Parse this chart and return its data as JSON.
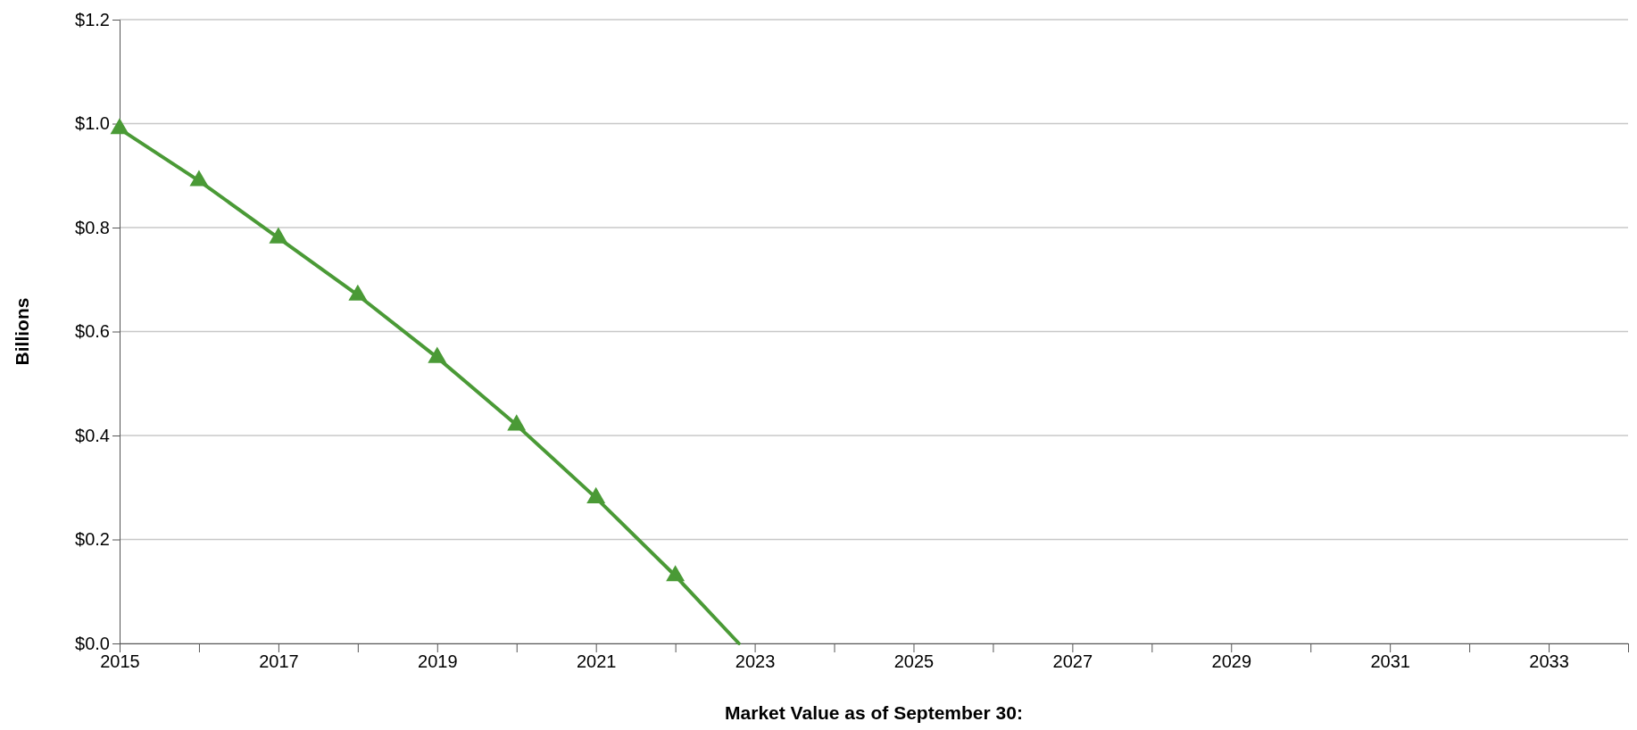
{
  "chart_data": {
    "type": "line",
    "xlabel": "Market Value as of September 30:",
    "ylabel": "Billions",
    "xlim": [
      2015,
      2034
    ],
    "xticks": [
      2015,
      {
        "value": 2016,
        "label": null
      },
      2017,
      {
        "value": 2018,
        "label": null
      },
      2019,
      {
        "value": 2020,
        "label": null
      },
      2021,
      {
        "value": 2022,
        "label": null
      },
      2023,
      {
        "value": 2024,
        "label": null
      },
      2025,
      {
        "value": 2026,
        "label": null
      },
      2027,
      {
        "value": 2028,
        "label": null
      },
      2029,
      {
        "value": 2030,
        "label": null
      },
      2031,
      {
        "value": 2032,
        "label": null
      },
      2033,
      {
        "value": 2034,
        "label": null
      }
    ],
    "ylim": [
      0,
      1.2
    ],
    "yticks": [
      {
        "value": 0,
        "label": "$0.0"
      },
      {
        "value": 0.2,
        "label": "$0.2"
      },
      {
        "value": 0.4,
        "label": "$0.4"
      },
      {
        "value": 0.6,
        "label": "$0.6"
      },
      {
        "value": 0.8,
        "label": "$0.8"
      },
      {
        "value": 1,
        "label": "$1.0"
      },
      {
        "value": 1.2,
        "label": "$1.2"
      }
    ],
    "grid": "y",
    "line_style": "solid",
    "series": [
      {
        "color": "#4a9a36",
        "marker": "triangle",
        "x": [
          2015,
          2016,
          2017,
          2018,
          2019,
          2020,
          2021,
          2022
        ],
        "values": [
          0.99,
          0.89,
          0.78,
          0.67,
          0.55,
          0.42,
          0.28,
          0.13
        ]
      },
      {
        "color": "#4a9a36",
        "marker": "none",
        "x": [
          2022,
          2022.8
        ],
        "values": [
          0.13,
          0
        ]
      }
    ]
  }
}
